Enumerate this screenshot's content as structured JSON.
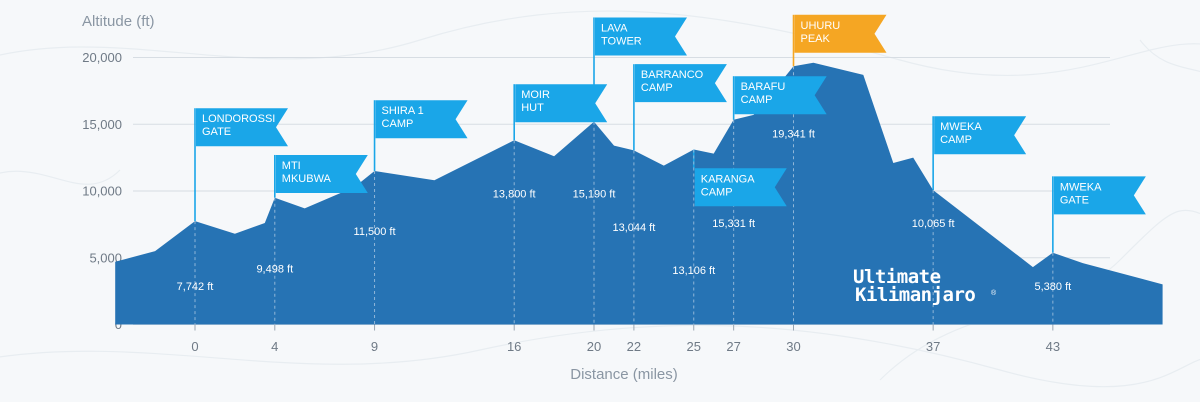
{
  "chart_data": {
    "type": "area",
    "title": "",
    "ylabel": "Altitude (ft)",
    "xlabel": "Distance (miles)",
    "ylim": [
      0,
      20000
    ],
    "xlim": [
      -4,
      48.5
    ],
    "yticks": [
      0,
      5000,
      10000,
      15000,
      20000
    ],
    "ytick_labels": [
      "0",
      "5,000",
      "10,000",
      "15,000",
      "20,000"
    ],
    "xticks": [
      0,
      4,
      9,
      16,
      20,
      22,
      25,
      27,
      30,
      37,
      43
    ],
    "grid": true,
    "profile": [
      {
        "x": -4,
        "y": 4700
      },
      {
        "x": -2,
        "y": 5500
      },
      {
        "x": 0,
        "y": 7742
      },
      {
        "x": 2,
        "y": 6800
      },
      {
        "x": 3.5,
        "y": 7600
      },
      {
        "x": 4,
        "y": 9498
      },
      {
        "x": 5.5,
        "y": 8700
      },
      {
        "x": 8,
        "y": 10300
      },
      {
        "x": 9,
        "y": 11500
      },
      {
        "x": 12,
        "y": 10800
      },
      {
        "x": 16,
        "y": 13800
      },
      {
        "x": 18,
        "y": 12600
      },
      {
        "x": 20,
        "y": 15190
      },
      {
        "x": 21,
        "y": 13400
      },
      {
        "x": 22,
        "y": 13044
      },
      {
        "x": 23.5,
        "y": 11900
      },
      {
        "x": 25,
        "y": 13106
      },
      {
        "x": 26,
        "y": 12800
      },
      {
        "x": 27,
        "y": 15331
      },
      {
        "x": 28,
        "y": 15700
      },
      {
        "x": 29,
        "y": 17500
      },
      {
        "x": 30,
        "y": 19341
      },
      {
        "x": 31,
        "y": 19600
      },
      {
        "x": 33.5,
        "y": 18700
      },
      {
        "x": 35,
        "y": 12100
      },
      {
        "x": 36,
        "y": 12500
      },
      {
        "x": 37,
        "y": 10065
      },
      {
        "x": 42,
        "y": 4300
      },
      {
        "x": 43,
        "y": 5380
      },
      {
        "x": 44.5,
        "y": 4600
      },
      {
        "x": 48.5,
        "y": 3000
      }
    ],
    "camps": [
      {
        "name_lines": [
          "LONDOROSSI",
          "GATE"
        ],
        "x": 0,
        "altitude_label": "7,742 ft",
        "flag_alt": 16200,
        "value_alt": 2600,
        "color": "#1aa6e8"
      },
      {
        "name_lines": [
          "MTI",
          "MKUBWA"
        ],
        "x": 4,
        "altitude_label": "9,498 ft",
        "flag_alt": 12700,
        "value_alt": 3900,
        "color": "#1aa6e8"
      },
      {
        "name_lines": [
          "SHIRA 1",
          "CAMP"
        ],
        "x": 9,
        "altitude_label": "11,500 ft",
        "flag_alt": 16800,
        "value_alt": 6700,
        "color": "#1aa6e8"
      },
      {
        "name_lines": [
          "MOIR",
          "HUT"
        ],
        "x": 16,
        "altitude_label": "13,800 ft",
        "flag_alt": 18000,
        "value_alt": 9500,
        "color": "#1aa6e8"
      },
      {
        "name_lines": [
          "LAVA",
          "TOWER"
        ],
        "x": 20,
        "altitude_label": "15,190 ft",
        "flag_alt": 23000,
        "value_alt": 9500,
        "color": "#1aa6e8"
      },
      {
        "name_lines": [
          "BARRANCO",
          "CAMP"
        ],
        "x": 22,
        "altitude_label": "13,044 ft",
        "flag_alt": 19500,
        "value_alt": 7000,
        "color": "#1aa6e8"
      },
      {
        "name_lines": [
          "KARANGA",
          "CAMP"
        ],
        "x": 25,
        "altitude_label": "13,106 ft",
        "flag_alt": 11700,
        "value_alt": 3800,
        "color": "#1aa6e8"
      },
      {
        "name_lines": [
          "BARAFU",
          "CAMP"
        ],
        "x": 27,
        "altitude_label": "15,331 ft",
        "flag_alt": 18600,
        "value_alt": 7300,
        "color": "#1aa6e8"
      },
      {
        "name_lines": [
          "UHURU",
          "PEAK"
        ],
        "x": 30,
        "altitude_label": "19,341 ft",
        "flag_alt": 23200,
        "value_alt": 14000,
        "color": "#f5a623"
      },
      {
        "name_lines": [
          "MWEKA",
          "CAMP"
        ],
        "x": 37,
        "altitude_label": "10,065 ft",
        "flag_alt": 15600,
        "value_alt": 7300,
        "color": "#1aa6e8"
      },
      {
        "name_lines": [
          "MWEKA",
          "GATE"
        ],
        "x": 43,
        "altitude_label": "5,380 ft",
        "flag_alt": 11100,
        "value_alt": 2600,
        "color": "#1aa6e8"
      }
    ]
  },
  "brand": {
    "line1": "Ultimate",
    "line2": "Kilimanjaro",
    "registered": "®"
  },
  "colors": {
    "terrain": "#2673b4",
    "flag": "#1aa6e8",
    "summit_flag": "#f5a623",
    "grid": "#d7dde3",
    "pole": "#8fb6d8"
  }
}
